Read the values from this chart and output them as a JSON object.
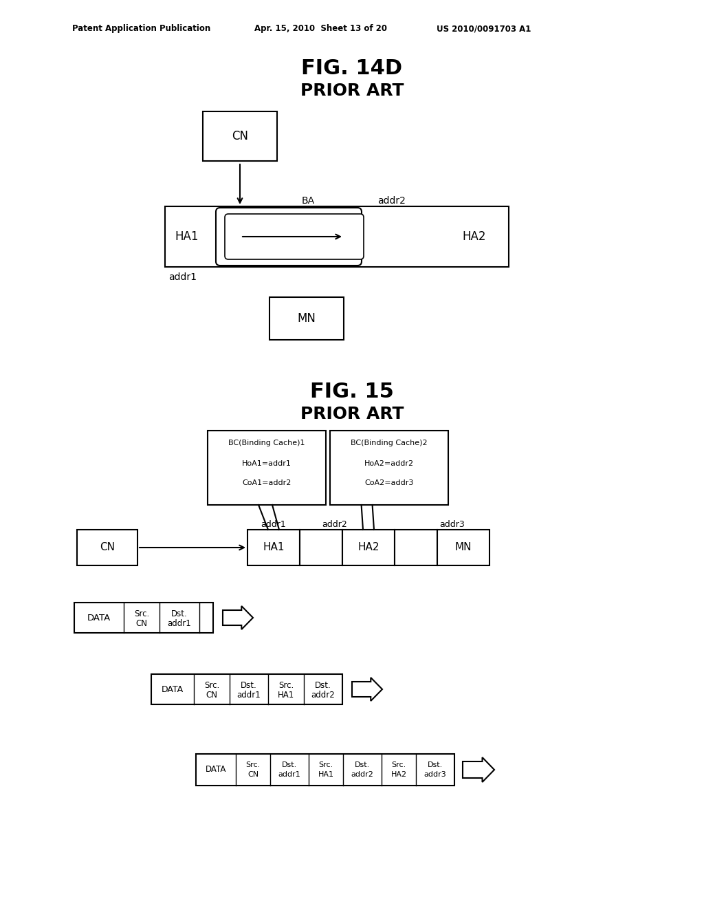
{
  "bg_color": "#ffffff",
  "header_left": "Patent Application Publication",
  "header_mid": "Apr. 15, 2010  Sheet 13 of 20",
  "header_right": "US 2010/0091703 A1",
  "fig14d_title": "FIG. 14D",
  "fig14d_subtitle": "PRIOR ART",
  "fig15_title": "FIG. 15",
  "fig15_subtitle": "PRIOR ART"
}
